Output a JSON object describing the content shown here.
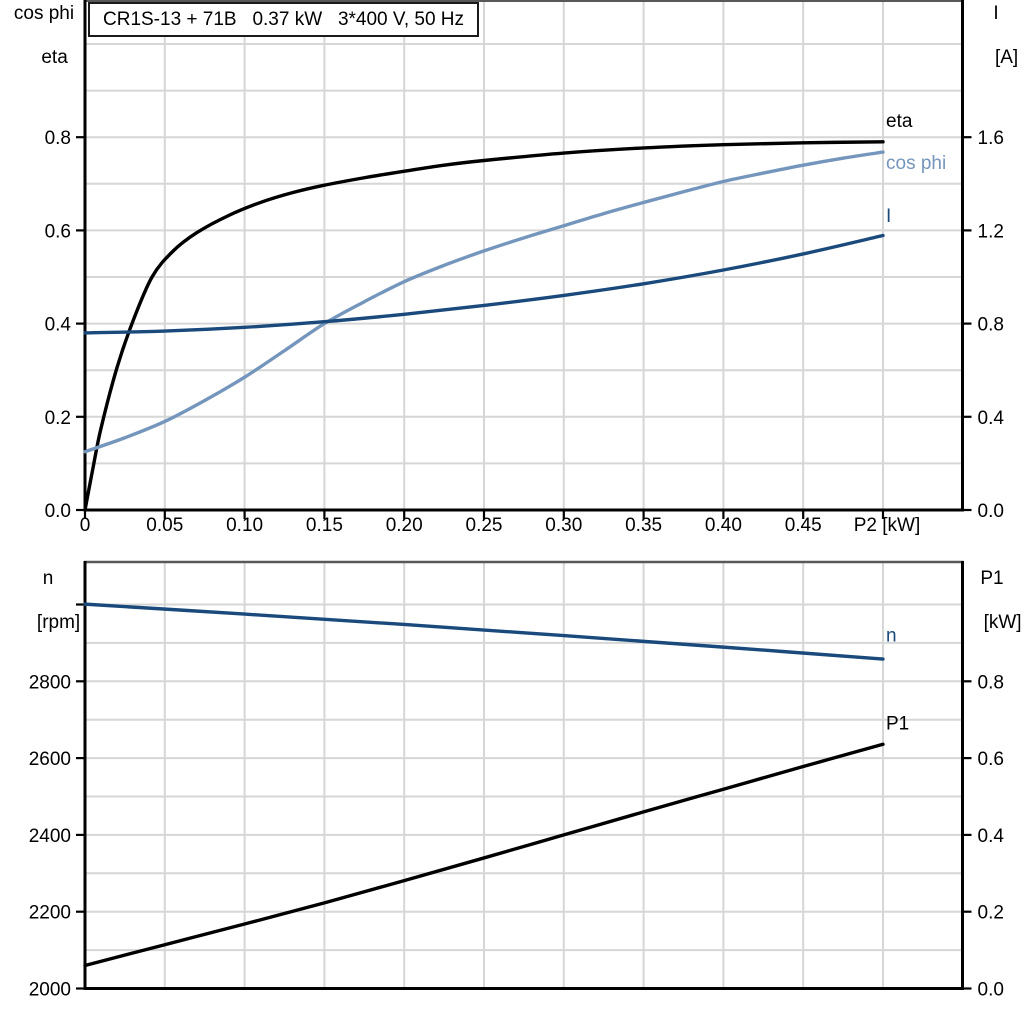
{
  "title_box": "CR1S-13 + 71B   0.37 kW   3*400 V, 50 Hz",
  "colors": {
    "background": "#ffffff",
    "grid": "#d6d6d6",
    "frame": "#000000",
    "frame_gray": "#585858",
    "text": "#000000",
    "dark_blue": "#1a4a7c",
    "light_blue": "#7596bc"
  },
  "chart_data": [
    {
      "id": "electrical-curves",
      "type": "line",
      "x_axis": {
        "min": 0,
        "max": 0.5,
        "grid_step": 0.05,
        "tick_values": [
          0,
          0.05,
          0.1,
          0.15,
          0.2,
          0.25,
          0.3,
          0.35,
          0.4,
          0.45,
          0.5
        ],
        "tick_labels": [
          "0",
          "0.05",
          "0.10",
          "0.15",
          "0.20",
          "0.25",
          "0.30",
          "0.35",
          "0.40",
          "0.45",
          "P2 [kW]"
        ]
      },
      "left_axis": {
        "title_lines": [
          "cos phi",
          "eta"
        ],
        "min": 0,
        "max": 0.8,
        "grid_min": 0.1,
        "grid_max": 1.0,
        "grid_step": 0.1,
        "tick_values": [
          0.0,
          0.2,
          0.4,
          0.6,
          0.8
        ],
        "tick_labels": [
          "0.0",
          "0.2",
          "0.4",
          "0.6",
          "0.8"
        ]
      },
      "right_axis": {
        "title_lines": [
          "I",
          "[A]"
        ],
        "min": 0,
        "max": 1.6,
        "tick_values": [
          0.0,
          0.4,
          0.8,
          1.2,
          1.6
        ],
        "tick_labels": [
          "0.0",
          "0.4",
          "0.8",
          "1.2",
          "1.6"
        ]
      },
      "series": [
        {
          "name": "eta",
          "label": "eta",
          "axis": "left",
          "color": "#000000",
          "label_value": 0.837,
          "x": [
            0,
            0.005,
            0.01,
            0.02,
            0.03,
            0.042,
            0.055,
            0.07,
            0.09,
            0.11,
            0.13,
            0.15,
            0.175,
            0.2,
            0.225,
            0.25,
            0.3,
            0.35,
            0.4,
            0.45,
            0.5
          ],
          "y": [
            0,
            0.09,
            0.175,
            0.305,
            0.405,
            0.5,
            0.555,
            0.595,
            0.632,
            0.66,
            0.681,
            0.697,
            0.713,
            0.727,
            0.74,
            0.75,
            0.766,
            0.777,
            0.784,
            0.788,
            0.79
          ]
        },
        {
          "name": "cos_phi",
          "label": "cos phi",
          "axis": "left",
          "color": "#7596bc",
          "label_value": 0.747,
          "x": [
            0,
            0.025,
            0.05,
            0.075,
            0.1,
            0.125,
            0.15,
            0.175,
            0.2,
            0.225,
            0.25,
            0.275,
            0.3,
            0.325,
            0.35,
            0.375,
            0.4,
            0.425,
            0.45,
            0.475,
            0.5
          ],
          "y": [
            0.125,
            0.155,
            0.19,
            0.235,
            0.285,
            0.342,
            0.4,
            0.447,
            0.49,
            0.525,
            0.556,
            0.584,
            0.61,
            0.636,
            0.66,
            0.683,
            0.705,
            0.723,
            0.74,
            0.755,
            0.768
          ]
        },
        {
          "name": "I",
          "label": "I",
          "axis": "right",
          "color": "#1a4a7c",
          "label_value": 1.266,
          "x": [
            0,
            0.05,
            0.1,
            0.15,
            0.2,
            0.25,
            0.3,
            0.35,
            0.4,
            0.45,
            0.5
          ],
          "y": [
            0.76,
            0.768,
            0.784,
            0.808,
            0.84,
            0.878,
            0.921,
            0.971,
            1.03,
            1.099,
            1.178
          ]
        }
      ]
    },
    {
      "id": "speed-power-curves",
      "type": "line",
      "x_axis": {
        "min": 0,
        "max": 0.5,
        "grid_step": 0.05,
        "tick_values": [],
        "tick_labels": []
      },
      "left_axis": {
        "title_lines": [
          "n",
          "[rpm]"
        ],
        "min": 2000,
        "max": 2800,
        "grid_min": 2100,
        "grid_max": 3000,
        "grid_step": 100,
        "tick_values": [
          2000,
          2200,
          2400,
          2600,
          2800
        ],
        "tick_labels": [
          "2000",
          "2200",
          "2400",
          "2600",
          "2800"
        ],
        "extra_tick_values": [
          3000
        ]
      },
      "right_axis": {
        "title_lines": [
          "P1",
          "[kW]"
        ],
        "min": 0,
        "max": 0.8,
        "tick_values": [
          0.0,
          0.2,
          0.4,
          0.6,
          0.8
        ],
        "tick_labels": [
          "0.0",
          "0.2",
          "0.4",
          "0.6",
          "0.8"
        ]
      },
      "series": [
        {
          "name": "n",
          "label": "n",
          "axis": "left",
          "color": "#1a4a7c",
          "label_value": 2922,
          "x": [
            0,
            0.1,
            0.2,
            0.3,
            0.4,
            0.5
          ],
          "y": [
            3001,
            2975,
            2948,
            2919,
            2889,
            2858
          ]
        },
        {
          "name": "P1",
          "label": "P1",
          "axis": "right",
          "color": "#000000",
          "label_value": 0.693,
          "x": [
            0,
            0.05,
            0.1,
            0.15,
            0.2,
            0.25,
            0.3,
            0.35,
            0.4,
            0.45,
            0.5
          ],
          "y": [
            0.06,
            0.114,
            0.168,
            0.223,
            0.281,
            0.34,
            0.4,
            0.46,
            0.519,
            0.578,
            0.636
          ]
        }
      ]
    }
  ]
}
